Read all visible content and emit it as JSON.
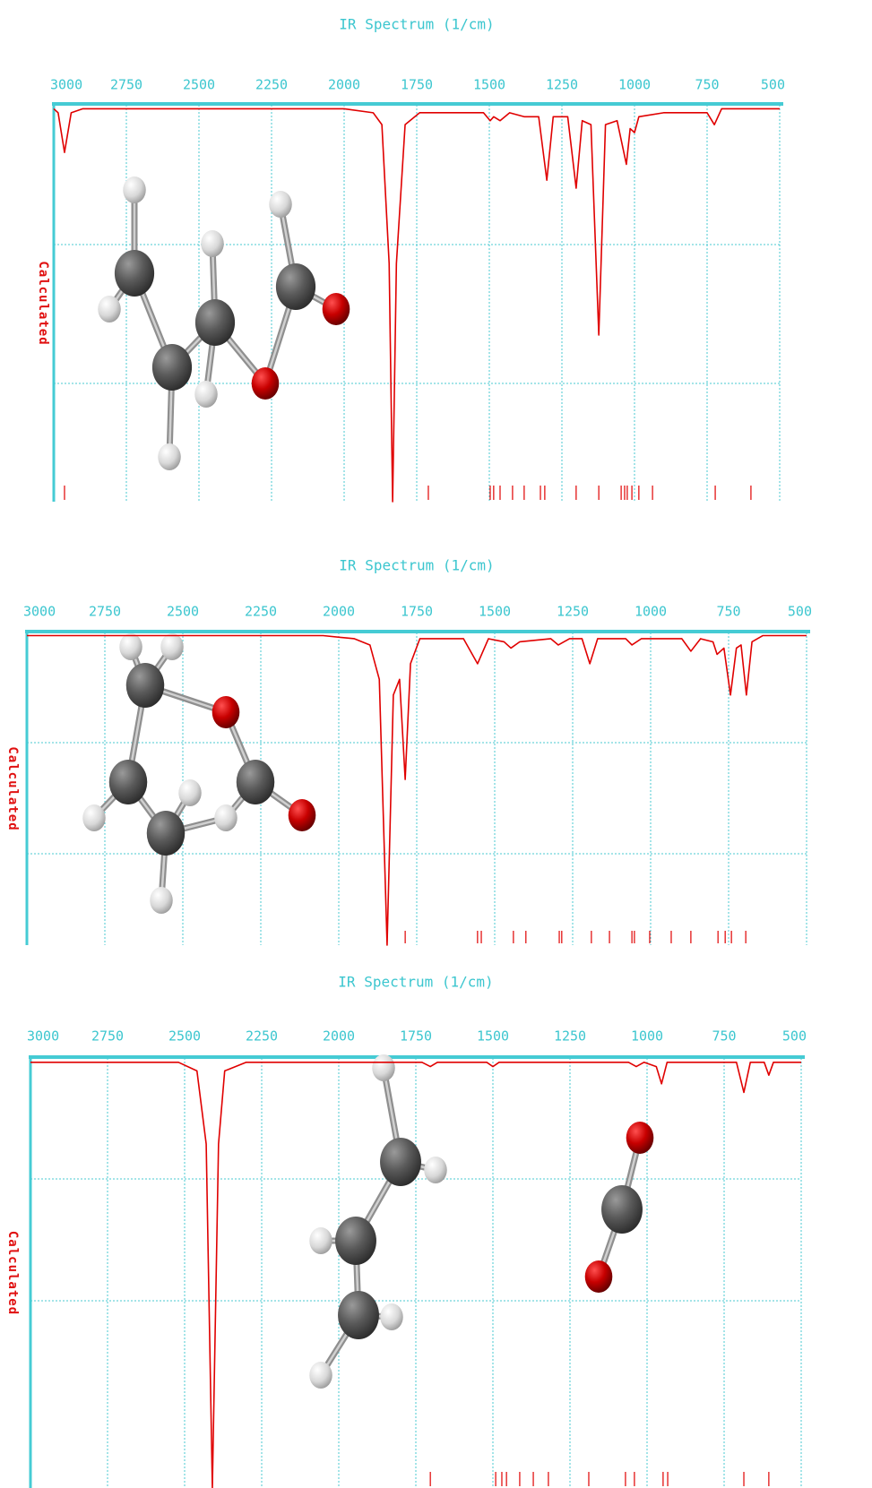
{
  "chart_data": [
    {
      "type": "line",
      "title": "IR Spectrum (1/cm)",
      "ylabel": "Calculated",
      "color": "#e00000",
      "xlim": [
        3000,
        500
      ],
      "ylim": [
        0,
        1
      ],
      "xticks": [
        3000,
        2750,
        2500,
        2250,
        2000,
        1750,
        1500,
        1250,
        1000,
        750,
        500
      ],
      "x": [
        3000,
        2985,
        2963,
        2940,
        2900,
        2000,
        1900,
        1870,
        1845,
        1833,
        1820,
        1790,
        1740,
        1520,
        1497,
        1485,
        1463,
        1430,
        1380,
        1330,
        1302,
        1280,
        1230,
        1201,
        1180,
        1150,
        1123,
        1100,
        1060,
        1028,
        1015,
        1000,
        985,
        900,
        750,
        725,
        700,
        500
      ],
      "values": [
        0.99,
        0.98,
        0.88,
        0.98,
        0.99,
        0.99,
        0.98,
        0.95,
        0.6,
        0.0,
        0.6,
        0.95,
        0.98,
        0.98,
        0.96,
        0.97,
        0.96,
        0.98,
        0.97,
        0.97,
        0.81,
        0.97,
        0.97,
        0.79,
        0.96,
        0.95,
        0.42,
        0.95,
        0.96,
        0.85,
        0.94,
        0.93,
        0.97,
        0.98,
        0.98,
        0.95,
        0.99,
        0.99
      ],
      "sticks": [
        2963,
        1710,
        1497,
        1485,
        1463,
        1420,
        1380,
        1324,
        1309,
        1201,
        1123,
        1046,
        1034,
        1025,
        1009,
        985,
        938,
        722,
        599
      ]
    },
    {
      "type": "line",
      "title": "IR Spectrum (1/cm)",
      "ylabel": "Calculated",
      "color": "#e00000",
      "xlim": [
        3000,
        500
      ],
      "ylim": [
        0,
        1
      ],
      "xticks": [
        3000,
        2750,
        2500,
        2250,
        2000,
        1750,
        1500,
        1250,
        1000,
        750,
        500
      ],
      "x": [
        3000,
        2050,
        1950,
        1900,
        1870,
        1845,
        1825,
        1805,
        1787,
        1770,
        1740,
        1600,
        1555,
        1520,
        1470,
        1448,
        1420,
        1320,
        1296,
        1260,
        1220,
        1195,
        1170,
        1080,
        1060,
        1030,
        900,
        871,
        840,
        800,
        787,
        765,
        744,
        725,
        710,
        693,
        675,
        640,
        500
      ],
      "values": [
        0.99,
        0.99,
        0.98,
        0.96,
        0.85,
        0.0,
        0.8,
        0.85,
        0.53,
        0.9,
        0.98,
        0.98,
        0.9,
        0.98,
        0.97,
        0.95,
        0.97,
        0.98,
        0.96,
        0.98,
        0.98,
        0.9,
        0.98,
        0.98,
        0.96,
        0.98,
        0.98,
        0.94,
        0.98,
        0.97,
        0.93,
        0.95,
        0.8,
        0.95,
        0.96,
        0.8,
        0.97,
        0.99,
        0.99
      ],
      "sticks": [
        1787,
        1555,
        1543,
        1440,
        1400,
        1293,
        1285,
        1190,
        1132,
        1060,
        1052,
        1003,
        934,
        871,
        784,
        761,
        741,
        695
      ]
    },
    {
      "type": "line",
      "title": "IR Spectrum (1/cm)",
      "ylabel": "Calculated",
      "color": "#e00000",
      "xlim": [
        3000,
        500
      ],
      "ylim": [
        0,
        1
      ],
      "xticks": [
        3000,
        2750,
        2500,
        2250,
        2000,
        1750,
        1500,
        1250,
        1000,
        750,
        500
      ],
      "x": [
        3000,
        2520,
        2460,
        2430,
        2410,
        2390,
        2370,
        2300,
        1730,
        1703,
        1680,
        1520,
        1500,
        1480,
        1060,
        1035,
        1010,
        970,
        953,
        935,
        710,
        686,
        665,
        620,
        605,
        590,
        500
      ],
      "values": [
        0.99,
        0.99,
        0.97,
        0.8,
        0.0,
        0.8,
        0.97,
        0.99,
        0.99,
        0.98,
        0.99,
        0.99,
        0.98,
        0.99,
        0.99,
        0.98,
        0.99,
        0.98,
        0.94,
        0.99,
        0.99,
        0.92,
        0.99,
        0.99,
        0.96,
        0.99,
        0.99
      ],
      "sticks": [
        1703,
        1491,
        1471,
        1456,
        1413,
        1369,
        1320,
        1189,
        1070,
        1041,
        948,
        933,
        686,
        605
      ]
    }
  ]
}
